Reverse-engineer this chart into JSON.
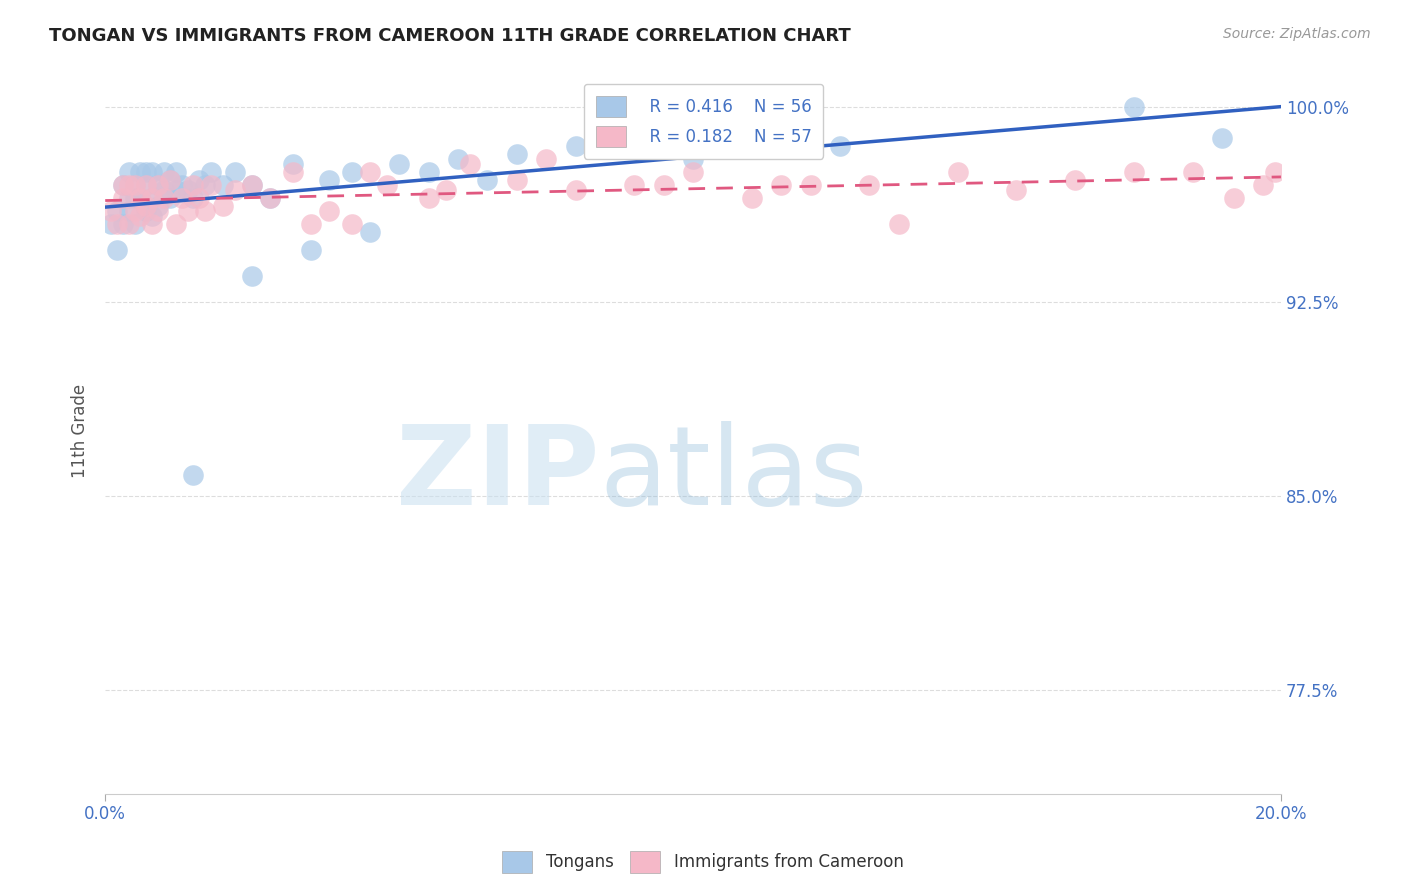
{
  "title": "TONGAN VS IMMIGRANTS FROM CAMEROON 11TH GRADE CORRELATION CHART",
  "source": "Source: ZipAtlas.com",
  "ylabel": "11th Grade",
  "xlim": [
    0.0,
    0.2
  ],
  "ylim": [
    0.735,
    1.015
  ],
  "legend_r1": "R = 0.416",
  "legend_n1": "N = 56",
  "legend_r2": "R = 0.182",
  "legend_n2": "N = 57",
  "color_blue": "#A8C8E8",
  "color_pink": "#F5B8C8",
  "line_blue": "#3060C0",
  "line_pink": "#E05880",
  "y_ticks": [
    0.775,
    0.85,
    0.925,
    1.0
  ],
  "y_tick_labels": [
    "77.5%",
    "85.0%",
    "92.5%",
    "100.0%"
  ],
  "x_tick_left": "0.0%",
  "x_tick_right": "20.0%",
  "tongans_x": [
    0.001,
    0.002,
    0.002,
    0.003,
    0.003,
    0.004,
    0.004,
    0.004,
    0.005,
    0.005,
    0.005,
    0.006,
    0.006,
    0.007,
    0.007,
    0.007,
    0.008,
    0.008,
    0.008,
    0.009,
    0.009,
    0.01,
    0.01,
    0.011,
    0.011,
    0.012,
    0.012,
    0.013,
    0.014,
    0.015,
    0.016,
    0.017,
    0.018,
    0.02,
    0.022,
    0.025,
    0.028,
    0.032,
    0.038,
    0.042,
    0.05,
    0.055,
    0.06,
    0.065,
    0.07,
    0.08,
    0.09,
    0.1,
    0.11,
    0.125,
    0.015,
    0.025,
    0.035,
    0.045,
    0.175,
    0.19
  ],
  "tongans_y": [
    0.955,
    0.96,
    0.945,
    0.97,
    0.955,
    0.965,
    0.975,
    0.96,
    0.97,
    0.955,
    0.965,
    0.965,
    0.975,
    0.97,
    0.96,
    0.975,
    0.965,
    0.975,
    0.958,
    0.97,
    0.962,
    0.968,
    0.975,
    0.965,
    0.972,
    0.968,
    0.975,
    0.97,
    0.968,
    0.965,
    0.972,
    0.97,
    0.975,
    0.97,
    0.975,
    0.97,
    0.965,
    0.978,
    0.972,
    0.975,
    0.978,
    0.975,
    0.98,
    0.972,
    0.982,
    0.985,
    0.985,
    0.98,
    0.988,
    0.985,
    0.858,
    0.935,
    0.945,
    0.952,
    1.0,
    0.988
  ],
  "cameroon_x": [
    0.001,
    0.002,
    0.003,
    0.003,
    0.004,
    0.004,
    0.005,
    0.005,
    0.006,
    0.006,
    0.007,
    0.007,
    0.008,
    0.008,
    0.009,
    0.009,
    0.01,
    0.011,
    0.012,
    0.013,
    0.014,
    0.015,
    0.016,
    0.017,
    0.018,
    0.02,
    0.022,
    0.025,
    0.028,
    0.032,
    0.038,
    0.042,
    0.048,
    0.055,
    0.062,
    0.07,
    0.08,
    0.09,
    0.1,
    0.11,
    0.12,
    0.13,
    0.035,
    0.045,
    0.058,
    0.075,
    0.095,
    0.115,
    0.135,
    0.145,
    0.155,
    0.165,
    0.175,
    0.185,
    0.192,
    0.197,
    0.199
  ],
  "cameroon_y": [
    0.96,
    0.955,
    0.965,
    0.97,
    0.955,
    0.97,
    0.96,
    0.97,
    0.958,
    0.965,
    0.962,
    0.97,
    0.965,
    0.955,
    0.97,
    0.96,
    0.965,
    0.972,
    0.955,
    0.965,
    0.96,
    0.97,
    0.965,
    0.96,
    0.97,
    0.962,
    0.968,
    0.97,
    0.965,
    0.975,
    0.96,
    0.955,
    0.97,
    0.965,
    0.978,
    0.972,
    0.968,
    0.97,
    0.975,
    0.965,
    0.97,
    0.97,
    0.955,
    0.975,
    0.968,
    0.98,
    0.97,
    0.97,
    0.955,
    0.975,
    0.968,
    0.972,
    0.975,
    0.975,
    0.965,
    0.97,
    0.975
  ]
}
